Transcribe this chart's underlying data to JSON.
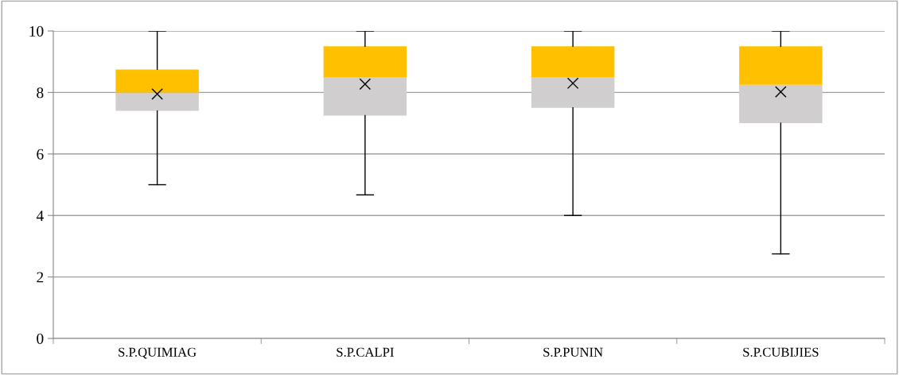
{
  "chart_data": {
    "type": "box",
    "categories": [
      "S.P.QUIMIAG",
      "S.P.CALPI",
      "S.P.PUNIN",
      "S.P.CUBIJIES"
    ],
    "boxes": [
      {
        "low": 5.0,
        "q1": 7.4,
        "median": 8.0,
        "q3": 8.75,
        "high": 10,
        "mean": 7.95
      },
      {
        "low": 4.67,
        "q1": 7.25,
        "median": 8.5,
        "q3": 9.5,
        "high": 10,
        "mean": 8.27
      },
      {
        "low": 4.0,
        "q1": 7.5,
        "median": 8.5,
        "q3": 9.5,
        "high": 10,
        "mean": 8.3
      },
      {
        "low": 2.75,
        "q1": 7.0,
        "median": 8.25,
        "q3": 9.5,
        "high": 10,
        "mean": 8.02
      }
    ],
    "colors": [
      [
        "#d0cece",
        "#ffc000"
      ],
      [
        "#d0cece",
        "#ffc000"
      ],
      [
        "#d0cece",
        "#ffc000"
      ],
      [
        "#d0cece",
        "#ffc000"
      ]
    ],
    "marker": "cross",
    "ylim": [
      0,
      10
    ],
    "yticks": [
      0,
      2,
      4,
      6,
      8,
      10
    ],
    "grid": "y"
  }
}
